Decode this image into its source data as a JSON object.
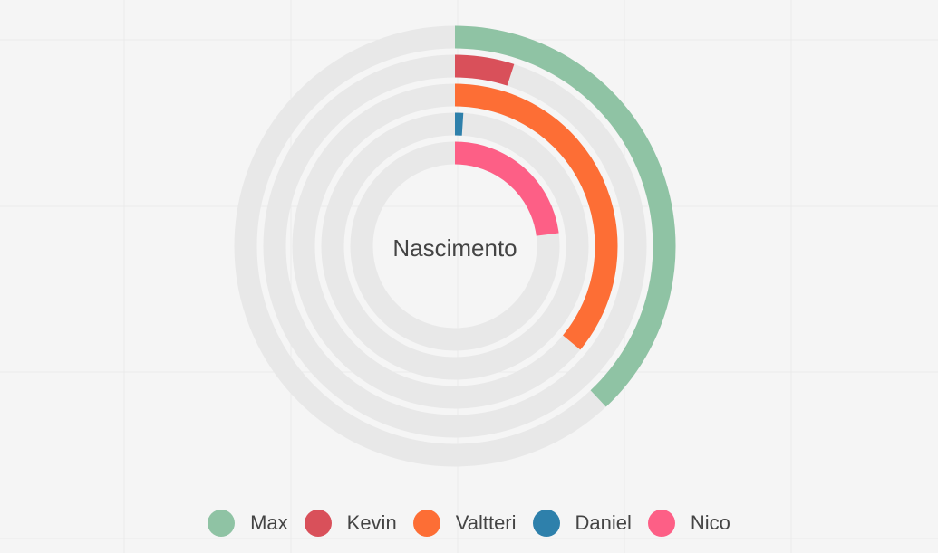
{
  "chart_data": {
    "type": "radialBar",
    "center_label": "Nascimento",
    "grid": true,
    "legend_position": "bottom",
    "max": 100,
    "track_color": "#e8e8e8",
    "background_color": "#f5f5f5",
    "series": [
      {
        "name": "Max",
        "value": 38,
        "color": "#8fc3a4"
      },
      {
        "name": "Kevin",
        "value": 5,
        "color": "#d9505a"
      },
      {
        "name": "Valtteri",
        "value": 36,
        "color": "#fd6e35"
      },
      {
        "name": "Daniel",
        "value": 1,
        "color": "#2e80ab"
      },
      {
        "name": "Nico",
        "value": 23,
        "color": "#fd5f86"
      }
    ]
  }
}
